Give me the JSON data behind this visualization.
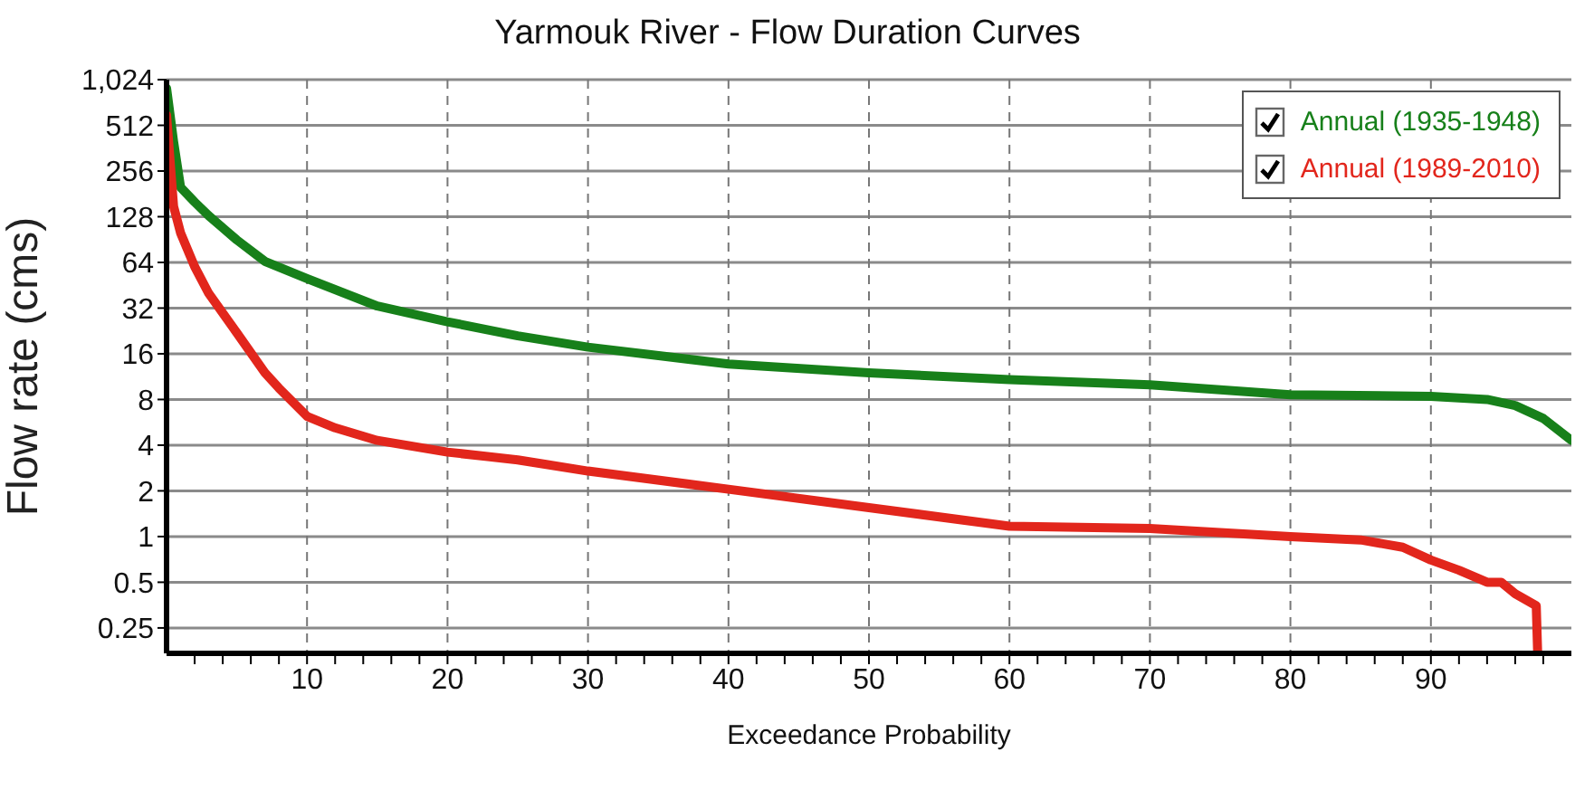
{
  "chart_data": {
    "type": "line",
    "title": "Yarmouk River - Flow Duration Curves",
    "xlabel": "Exceedance Probability",
    "ylabel": "Flow rate (cms)",
    "log": "y",
    "grid": true,
    "legend": "top right",
    "marker": "none",
    "line_style": "solid",
    "xlim": [
      0,
      100
    ],
    "xticks": [
      {
        "value": 2,
        "label": null
      },
      {
        "value": 4,
        "label": null
      },
      {
        "value": 6,
        "label": null
      },
      {
        "value": 8,
        "label": null
      },
      10,
      {
        "value": 12,
        "label": null
      },
      {
        "value": 14,
        "label": null
      },
      {
        "value": 16,
        "label": null
      },
      {
        "value": 18,
        "label": null
      },
      20,
      {
        "value": 22,
        "label": null
      },
      {
        "value": 24,
        "label": null
      },
      {
        "value": 26,
        "label": null
      },
      {
        "value": 28,
        "label": null
      },
      30,
      {
        "value": 32,
        "label": null
      },
      {
        "value": 34,
        "label": null
      },
      {
        "value": 36,
        "label": null
      },
      {
        "value": 38,
        "label": null
      },
      40,
      {
        "value": 42,
        "label": null
      },
      {
        "value": 44,
        "label": null
      },
      {
        "value": 46,
        "label": null
      },
      {
        "value": 48,
        "label": null
      },
      50,
      {
        "value": 52,
        "label": null
      },
      {
        "value": 54,
        "label": null
      },
      {
        "value": 56,
        "label": null
      },
      {
        "value": 58,
        "label": null
      },
      60,
      {
        "value": 62,
        "label": null
      },
      {
        "value": 64,
        "label": null
      },
      {
        "value": 66,
        "label": null
      },
      {
        "value": 68,
        "label": null
      },
      70,
      {
        "value": 72,
        "label": null
      },
      {
        "value": 74,
        "label": null
      },
      {
        "value": 76,
        "label": null
      },
      {
        "value": 78,
        "label": null
      },
      80,
      {
        "value": 82,
        "label": null
      },
      {
        "value": 84,
        "label": null
      },
      {
        "value": 86,
        "label": null
      },
      {
        "value": 88,
        "label": null
      },
      90,
      {
        "value": 92,
        "label": null
      },
      {
        "value": 94,
        "label": null
      },
      {
        "value": 96,
        "label": null
      },
      {
        "value": 98,
        "label": null
      }
    ],
    "ylim": [
      0.17,
      1024
    ],
    "yticks": [
      0.25,
      0.5,
      1,
      2,
      4,
      8,
      16,
      32,
      64,
      128,
      256,
      512,
      {
        "value": 1024,
        "label": "1,024"
      }
    ],
    "series": [
      {
        "name": "Annual (1935-1948)",
        "color": "#17801a",
        "x": [
          0,
          0.5,
          1,
          2,
          3,
          5,
          7,
          10,
          15,
          20,
          25,
          30,
          40,
          50,
          60,
          70,
          80,
          90,
          94,
          96,
          98,
          100
        ],
        "values": [
          900,
          400,
          200,
          160,
          130,
          90,
          65,
          50,
          33,
          26,
          21,
          17.7,
          13.7,
          12,
          10.8,
          10,
          8.6,
          8.4,
          8,
          7.3,
          6,
          4.3
        ]
      },
      {
        "name": "Annual (1989-2010)",
        "color": "#e2261c",
        "x": [
          0,
          0.5,
          1,
          2,
          3,
          5,
          7,
          8,
          10,
          12,
          15,
          20,
          25,
          30,
          40,
          50,
          60,
          70,
          80,
          85,
          88,
          90,
          92,
          94,
          95,
          96,
          97.5,
          97.6
        ],
        "values": [
          600,
          150,
          100,
          60,
          40,
          22,
          12,
          9.5,
          6.2,
          5.2,
          4.3,
          3.6,
          3.2,
          2.7,
          2.05,
          1.55,
          1.17,
          1.13,
          1.0,
          0.95,
          0.85,
          0.7,
          0.6,
          0.5,
          0.5,
          0.42,
          0.35,
          0.17
        ]
      }
    ]
  }
}
